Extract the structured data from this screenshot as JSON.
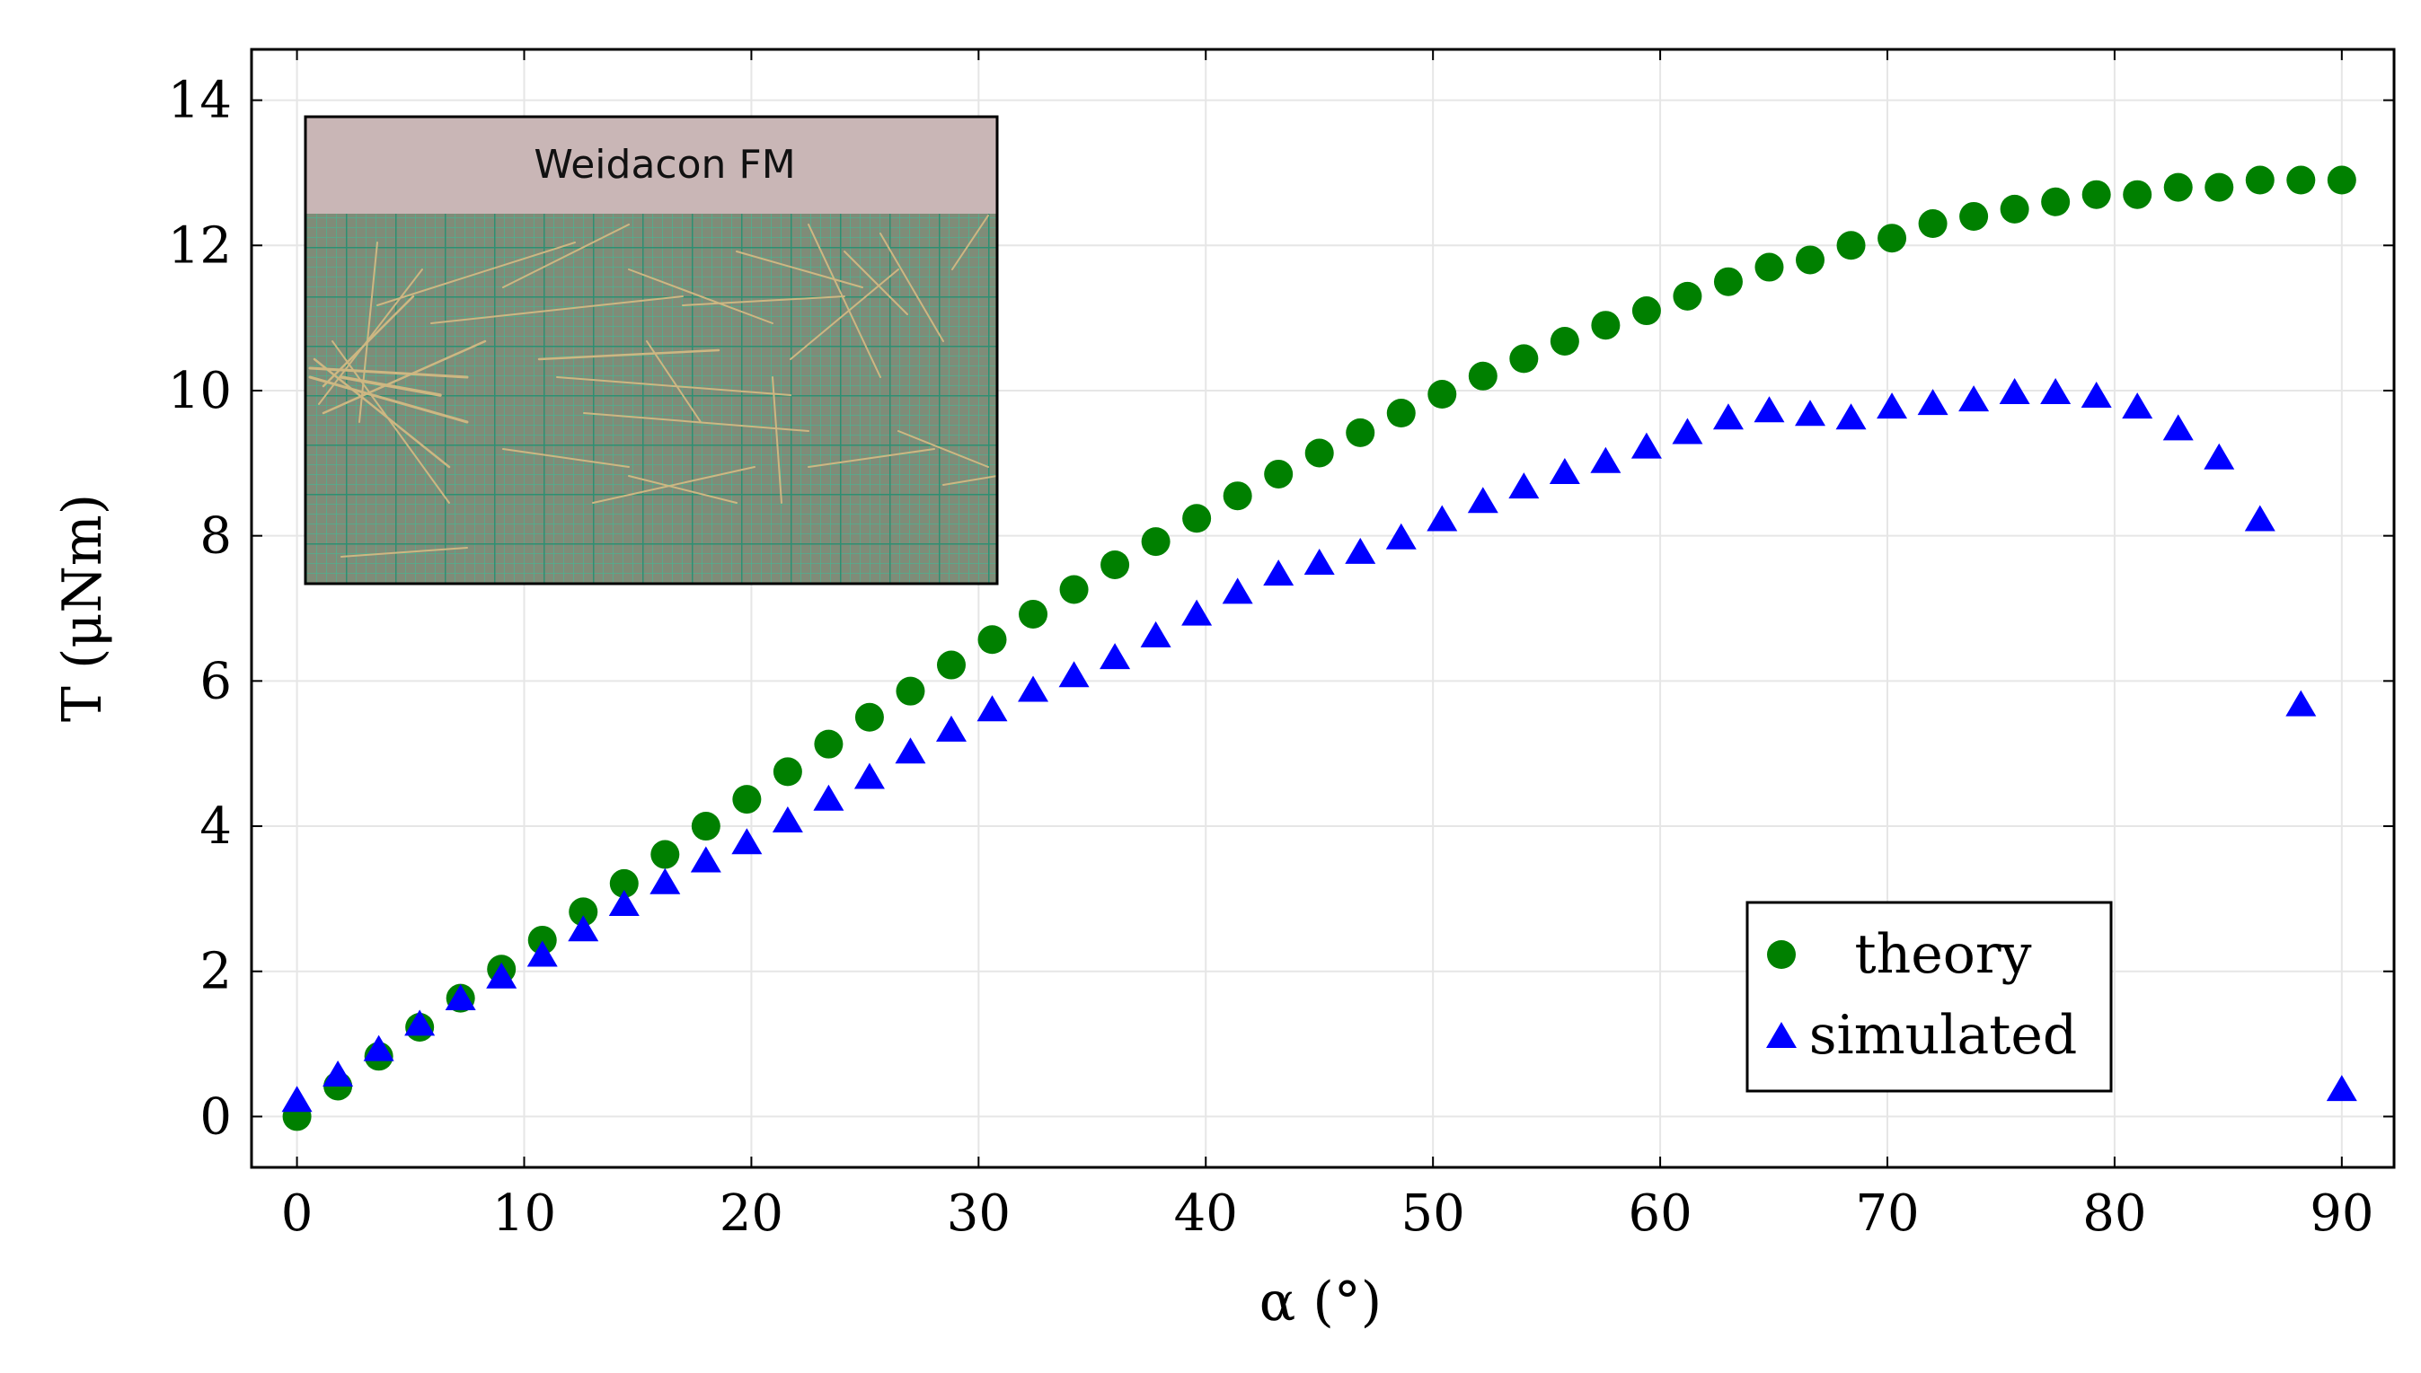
{
  "chart_data": {
    "type": "scatter",
    "xlabel": "α (°)",
    "ylabel": "T (μNm)",
    "xlim": [
      -2,
      92.3
    ],
    "ylim": [
      -0.7,
      14.7
    ],
    "xticks": [
      0,
      10,
      20,
      30,
      40,
      50,
      60,
      70,
      80,
      90
    ],
    "yticks": [
      0,
      2,
      4,
      6,
      8,
      10,
      12,
      14
    ],
    "grid": true,
    "legend_position": "bottom-right",
    "inset": {
      "title": "Weidacon FM",
      "position": "top-left",
      "description_colors": {
        "background": "#8a8c6e",
        "grid": "#3fae8c",
        "fibers": "#c8b27a"
      }
    },
    "series": [
      {
        "name": "theory",
        "marker": "circle",
        "color": "#008000",
        "x": [
          0,
          1.8,
          3.6,
          5.4,
          7.2,
          9.0,
          10.8,
          12.6,
          14.4,
          16.2,
          18.0,
          19.8,
          21.6,
          23.4,
          25.2,
          27.0,
          28.8,
          30.6,
          32.4,
          34.2,
          36.0,
          37.8,
          39.6,
          41.4,
          43.2,
          45.0,
          46.8,
          48.6,
          50.4,
          52.2,
          54.0,
          55.8,
          57.6,
          59.4,
          61.2,
          63.0,
          64.8,
          66.6,
          68.4,
          70.2,
          72.0,
          73.8,
          75.6,
          77.4,
          79.2,
          81.0,
          82.8,
          84.6,
          86.4,
          88.2,
          90.0
        ],
        "y": [
          0,
          0.42,
          0.83,
          1.23,
          1.63,
          2.03,
          2.43,
          2.82,
          3.21,
          3.61,
          4.0,
          4.37,
          4.75,
          5.13,
          5.5,
          5.86,
          6.22,
          6.57,
          6.92,
          7.26,
          7.6,
          7.92,
          8.24,
          8.55,
          8.85,
          9.14,
          9.42,
          9.69,
          9.95,
          10.2,
          10.44,
          10.68,
          10.9,
          11.1,
          11.3,
          11.5,
          11.7,
          11.8,
          12.0,
          12.1,
          12.3,
          12.4,
          12.5,
          12.6,
          12.7,
          12.7,
          12.8,
          12.8,
          12.9,
          12.9,
          12.9
        ]
      },
      {
        "name": "simulated",
        "marker": "triangle",
        "color": "#0000ff",
        "x": [
          0,
          1.8,
          3.6,
          5.4,
          7.2,
          9.0,
          10.8,
          12.6,
          14.4,
          16.2,
          18.0,
          19.8,
          21.6,
          23.4,
          25.2,
          27.0,
          28.8,
          30.6,
          32.4,
          34.2,
          36.0,
          37.8,
          39.6,
          41.4,
          43.2,
          45.0,
          46.8,
          48.6,
          50.4,
          52.2,
          54.0,
          55.8,
          57.6,
          59.4,
          61.2,
          63.0,
          64.8,
          66.6,
          68.4,
          70.2,
          72.0,
          73.8,
          75.6,
          77.4,
          79.2,
          81.0,
          82.8,
          84.6,
          86.4,
          88.2,
          90.0
        ],
        "y": [
          0.2,
          0.55,
          0.9,
          1.25,
          1.6,
          1.9,
          2.2,
          2.55,
          2.9,
          3.2,
          3.5,
          3.75,
          4.05,
          4.35,
          4.65,
          5.0,
          5.3,
          5.58,
          5.85,
          6.05,
          6.3,
          6.6,
          6.9,
          7.2,
          7.45,
          7.6,
          7.75,
          7.95,
          8.2,
          8.45,
          8.65,
          8.85,
          9.0,
          9.2,
          9.4,
          9.6,
          9.7,
          9.65,
          9.6,
          9.75,
          9.8,
          9.85,
          9.95,
          9.95,
          9.9,
          9.75,
          9.45,
          9.05,
          8.2,
          5.65,
          0.35
        ]
      }
    ]
  }
}
